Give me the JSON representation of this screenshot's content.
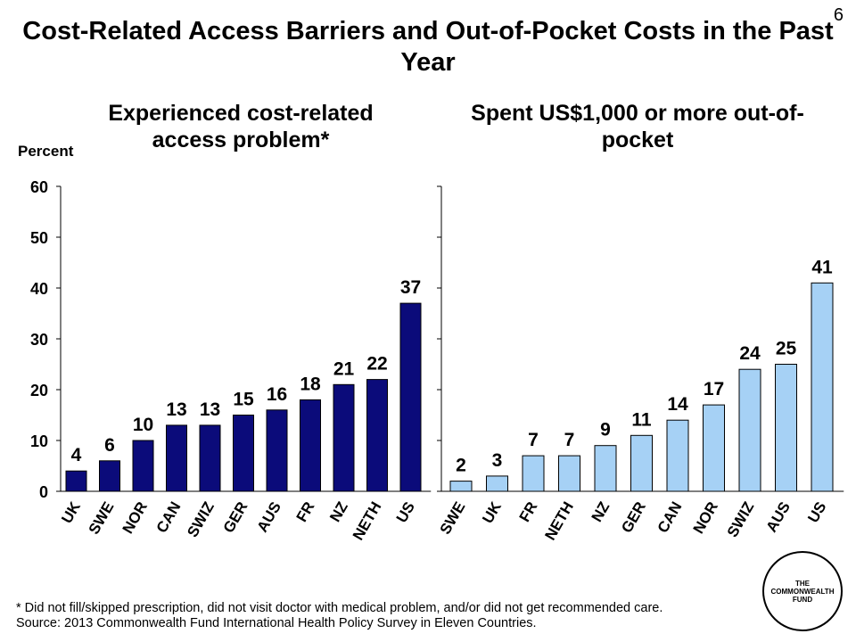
{
  "slide_number": "6",
  "title": "Cost-Related Access Barriers and Out-of-Pocket Costs in the Past Year",
  "y_unit_label": "Percent",
  "footnotes": [
    "* Did not fill/skipped prescription, did not visit doctor with medical problem, and/or did not get recommended care.",
    "Source: 2013 Commonwealth Fund International  Health Policy Survey in Eleven Countries."
  ],
  "logo_text": "THE\nCOMMONWEALTH\nFUND",
  "colors": {
    "left_bars": "#0b0b7a",
    "right_bars": "#a6d1f5",
    "bar_stroke": "#000000"
  },
  "chart_data": [
    {
      "type": "bar",
      "title": "Experienced cost-related access problem*",
      "ylabel": "Percent",
      "ylim": [
        0,
        60
      ],
      "yticks": [
        0,
        10,
        20,
        30,
        40,
        50,
        60
      ],
      "categories": [
        "UK",
        "SWE",
        "NOR",
        "CAN",
        "SWIZ",
        "GER",
        "AUS",
        "FR",
        "NZ",
        "NETH",
        "US"
      ],
      "values": [
        4,
        6,
        10,
        13,
        13,
        15,
        16,
        18,
        21,
        22,
        37
      ],
      "color": "#0b0b7a"
    },
    {
      "type": "bar",
      "title": "Spent US$1,000 or more out-of-pocket",
      "ylim": [
        0,
        60
      ],
      "categories": [
        "SWE",
        "UK",
        "FR",
        "NETH",
        "NZ",
        "GER",
        "CAN",
        "NOR",
        "SWIZ",
        "AUS",
        "US"
      ],
      "values": [
        2,
        3,
        7,
        7,
        9,
        11,
        14,
        17,
        24,
        25,
        41
      ],
      "color": "#a6d1f5"
    }
  ]
}
